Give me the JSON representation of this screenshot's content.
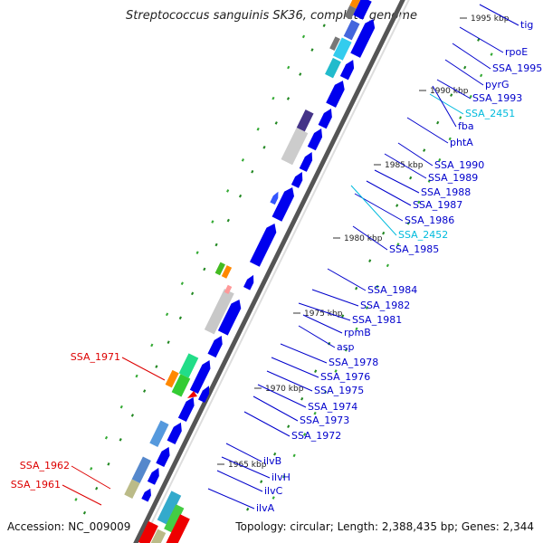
{
  "header": {
    "title": "Streptococcus sanguinis SK36, complete genome"
  },
  "footer": {
    "accession": "Accession: NC_009009",
    "topology": "Topology: circular; Length: 2,388,435 bp; Genes: 2,344"
  },
  "colors": {
    "forward_gene": "#0000ee",
    "label_blue": "#0000cc",
    "label_cyan": "#00bbdd",
    "label_red": "#dd0000",
    "backbone": "#888888",
    "gc_dots": "#228822"
  },
  "kbp_ticks": [
    "1995 kbp",
    "1990 kbp",
    "1985 kbp",
    "1980 kbp",
    "1975 kbp",
    "1970 kbp",
    "1965 kbp"
  ],
  "gene_labels": [
    {
      "text": "tig",
      "color": "blue"
    },
    {
      "text": "rpoE",
      "color": "blue"
    },
    {
      "text": "SSA_1995",
      "color": "blue"
    },
    {
      "text": "pyrG",
      "color": "blue"
    },
    {
      "text": "SSA_1993",
      "color": "blue"
    },
    {
      "text": "SSA_2451",
      "color": "cyan"
    },
    {
      "text": "fba",
      "color": "blue"
    },
    {
      "text": "phtA",
      "color": "blue"
    },
    {
      "text": "SSA_1990",
      "color": "blue"
    },
    {
      "text": "SSA_1989",
      "color": "blue"
    },
    {
      "text": "SSA_1988",
      "color": "blue"
    },
    {
      "text": "SSA_1987",
      "color": "blue"
    },
    {
      "text": "SSA_1986",
      "color": "blue"
    },
    {
      "text": "SSA_2452",
      "color": "cyan"
    },
    {
      "text": "SSA_1985",
      "color": "blue"
    },
    {
      "text": "SSA_1984",
      "color": "blue"
    },
    {
      "text": "SSA_1982",
      "color": "blue"
    },
    {
      "text": "SSA_1981",
      "color": "blue"
    },
    {
      "text": "rpmB",
      "color": "blue"
    },
    {
      "text": "asp",
      "color": "blue"
    },
    {
      "text": "SSA_1978",
      "color": "blue"
    },
    {
      "text": "SSA_1976",
      "color": "blue"
    },
    {
      "text": "SSA_1975",
      "color": "blue"
    },
    {
      "text": "SSA_1974",
      "color": "blue"
    },
    {
      "text": "SSA_1973",
      "color": "blue"
    },
    {
      "text": "SSA_1972",
      "color": "blue"
    },
    {
      "text": "ilvB",
      "color": "blue"
    },
    {
      "text": "ilvH",
      "color": "blue"
    },
    {
      "text": "ilvC",
      "color": "blue"
    },
    {
      "text": "ilvA",
      "color": "blue"
    },
    {
      "text": "SSA_1971",
      "color": "red"
    },
    {
      "text": "SSA_1962",
      "color": "red"
    },
    {
      "text": "SSA_1961",
      "color": "red"
    }
  ]
}
